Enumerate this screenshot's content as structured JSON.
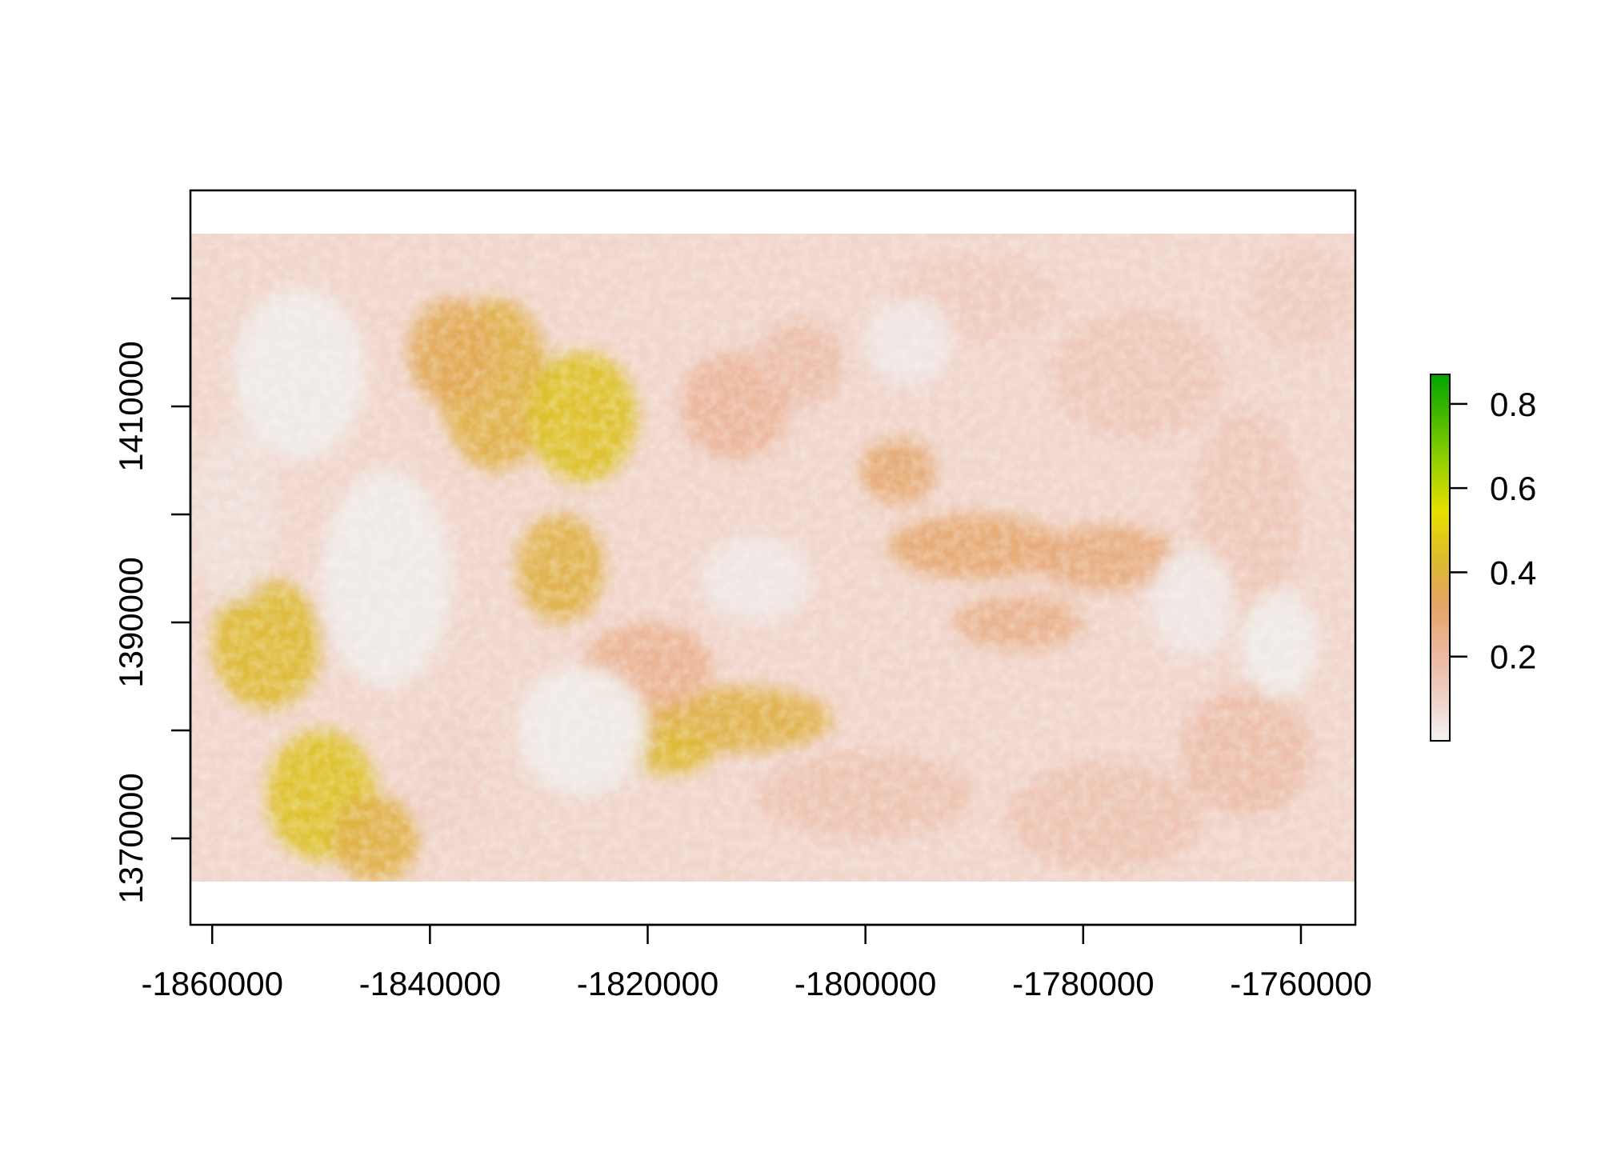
{
  "chart_data": {
    "type": "heatmap",
    "title": "",
    "xlabel": "",
    "ylabel": "",
    "xlim": [
      -1862000,
      -1755000
    ],
    "ylim": [
      1362000,
      1430000
    ],
    "raster_extent": {
      "x": [
        -1862000,
        -1755000
      ],
      "y": [
        1366000,
        1426000
      ]
    },
    "x_ticks": [
      -1860000,
      -1840000,
      -1820000,
      -1800000,
      -1780000,
      -1760000
    ],
    "x_tick_labels": [
      "-1860000",
      "-1840000",
      "-1820000",
      "-1800000",
      "-1780000",
      "-1760000"
    ],
    "y_ticks": [
      1370000,
      1380000,
      1390000,
      1400000,
      1410000,
      1420000
    ],
    "y_tick_labels": [
      "1370000",
      "",
      "1390000",
      "",
      "1410000",
      ""
    ],
    "legend": {
      "placement": "right",
      "range": [
        0.0,
        0.87
      ],
      "ticks": [
        0.2,
        0.4,
        0.6,
        0.8
      ],
      "tick_labels": [
        "0.2",
        "0.4",
        "0.6",
        "0.8"
      ],
      "colors": [
        "#f2f2f2",
        "#efcfc3",
        "#ebb59a",
        "#e4a464",
        "#dcbc2a",
        "#e6e000",
        "#9cd300",
        "#4cbb00",
        "#00a600"
      ]
    },
    "regions": [
      {
        "x": -1834000,
        "y": 1412000,
        "rx": 5000,
        "ry": 8000,
        "v": 0.38
      },
      {
        "x": -1826000,
        "y": 1409000,
        "rx": 5000,
        "ry": 6000,
        "v": 0.45
      },
      {
        "x": -1838000,
        "y": 1415000,
        "rx": 4000,
        "ry": 5000,
        "v": 0.35
      },
      {
        "x": -1828000,
        "y": 1395000,
        "rx": 4000,
        "ry": 5000,
        "v": 0.38
      },
      {
        "x": -1855000,
        "y": 1388000,
        "rx": 5000,
        "ry": 6000,
        "v": 0.42
      },
      {
        "x": -1850000,
        "y": 1374000,
        "rx": 5000,
        "ry": 6000,
        "v": 0.45
      },
      {
        "x": -1845000,
        "y": 1370000,
        "rx": 4000,
        "ry": 4000,
        "v": 0.38
      },
      {
        "x": -1812000,
        "y": 1381000,
        "rx": 9000,
        "ry": 3000,
        "v": 0.38
      },
      {
        "x": -1818000,
        "y": 1378000,
        "rx": 4000,
        "ry": 2000,
        "v": 0.42
      },
      {
        "x": -1790000,
        "y": 1397000,
        "rx": 8000,
        "ry": 3000,
        "v": 0.3
      },
      {
        "x": -1778000,
        "y": 1396000,
        "rx": 7000,
        "ry": 3000,
        "v": 0.28
      },
      {
        "x": -1797000,
        "y": 1404000,
        "rx": 3500,
        "ry": 3000,
        "v": 0.3
      },
      {
        "x": -1786000,
        "y": 1390000,
        "rx": 6000,
        "ry": 2500,
        "v": 0.25
      },
      {
        "x": -1812000,
        "y": 1410000,
        "rx": 5000,
        "ry": 5000,
        "v": 0.22
      },
      {
        "x": -1806000,
        "y": 1414000,
        "rx": 4000,
        "ry": 4000,
        "v": 0.18
      },
      {
        "x": -1775000,
        "y": 1413000,
        "rx": 8000,
        "ry": 6000,
        "v": 0.14
      },
      {
        "x": -1765000,
        "y": 1400000,
        "rx": 5000,
        "ry": 10000,
        "v": 0.14
      },
      {
        "x": -1800000,
        "y": 1374000,
        "rx": 10000,
        "ry": 4000,
        "v": 0.16
      },
      {
        "x": -1778000,
        "y": 1372000,
        "rx": 9000,
        "ry": 5000,
        "v": 0.16
      },
      {
        "x": -1765000,
        "y": 1378000,
        "rx": 6000,
        "ry": 6000,
        "v": 0.18
      },
      {
        "x": -1760000,
        "y": 1420000,
        "rx": 5000,
        "ry": 5000,
        "v": 0.12
      },
      {
        "x": -1790000,
        "y": 1420000,
        "rx": 8000,
        "ry": 4000,
        "v": 0.12
      },
      {
        "x": -1820000,
        "y": 1386000,
        "rx": 6000,
        "ry": 4000,
        "v": 0.24
      },
      {
        "x": -1838000,
        "y": 1376000,
        "rx": 4000,
        "ry": 6000,
        "v": 0.1
      },
      {
        "x": -1858000,
        "y": 1400000,
        "rx": 4000,
        "ry": 8000,
        "v": 0.06
      },
      {
        "x": -1844000,
        "y": 1394000,
        "rx": 6000,
        "ry": 10000,
        "v": 0.02
      },
      {
        "x": -1852000,
        "y": 1413000,
        "rx": 6000,
        "ry": 8000,
        "v": 0.02
      },
      {
        "x": -1826000,
        "y": 1380000,
        "rx": 6000,
        "ry": 6000,
        "v": 0.02
      },
      {
        "x": -1810000,
        "y": 1394000,
        "rx": 5000,
        "ry": 4000,
        "v": 0.03
      },
      {
        "x": -1796000,
        "y": 1416000,
        "rx": 4000,
        "ry": 4000,
        "v": 0.03
      },
      {
        "x": -1770000,
        "y": 1392000,
        "rx": 4000,
        "ry": 5000,
        "v": 0.03
      },
      {
        "x": -1762000,
        "y": 1388000,
        "rx": 3500,
        "ry": 5000,
        "v": 0.02
      }
    ]
  }
}
